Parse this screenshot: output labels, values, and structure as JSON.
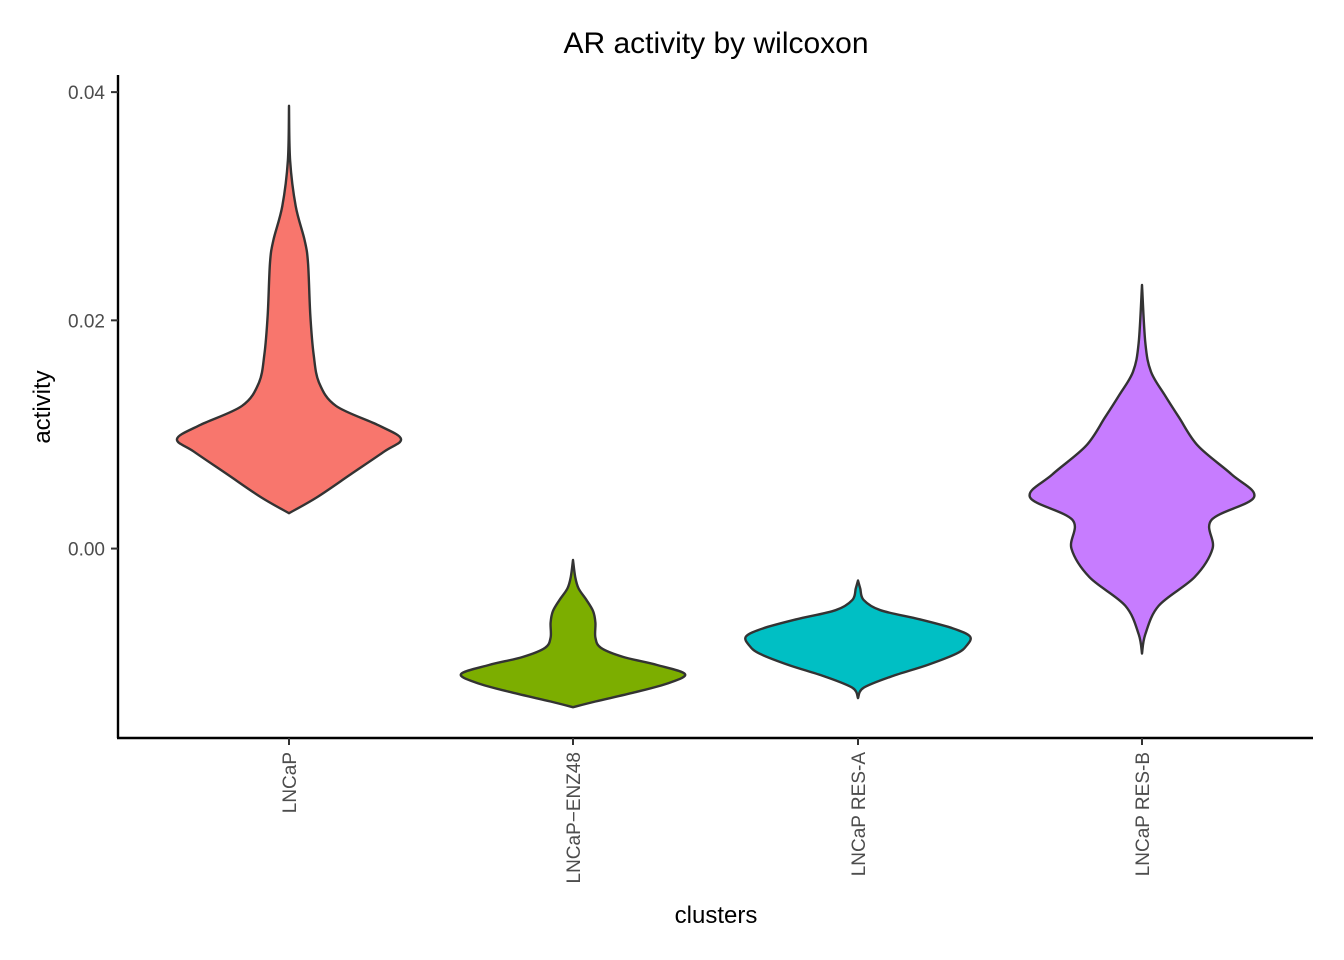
{
  "chart_data": {
    "type": "violin",
    "title": "AR activity by wilcoxon",
    "xlabel": "clusters",
    "ylabel": "activity",
    "ylim": [
      -0.0166,
      0.0415
    ],
    "yticks": [
      0.0,
      0.02,
      0.04
    ],
    "ytick_labels": [
      "0.00",
      "0.02",
      "0.04"
    ],
    "grid": false,
    "legend": "none",
    "categories": [
      "LNCaP",
      "LNCaP−ENZ48",
      "LNCaP RES-A",
      "LNCaP RES-B"
    ],
    "series": [
      {
        "category": "LNCaP",
        "color": "#F8766D",
        "min": 0.0031,
        "max": 0.0388,
        "density": [
          [
            0.0031,
            0.0
          ],
          [
            0.0045,
            0.25
          ],
          [
            0.0065,
            0.55
          ],
          [
            0.0085,
            0.85
          ],
          [
            0.0096,
            1.0
          ],
          [
            0.0108,
            0.8
          ],
          [
            0.0125,
            0.42
          ],
          [
            0.0145,
            0.27
          ],
          [
            0.017,
            0.22
          ],
          [
            0.0205,
            0.19
          ],
          [
            0.025,
            0.17
          ],
          [
            0.027,
            0.14
          ],
          [
            0.03,
            0.06
          ],
          [
            0.034,
            0.01
          ],
          [
            0.0388,
            0.0
          ]
        ]
      },
      {
        "category": "LNCaP−ENZ48",
        "color": "#7CAE00",
        "min": -0.0139,
        "max": -0.001,
        "density": [
          [
            -0.0139,
            0.0
          ],
          [
            -0.0134,
            0.2
          ],
          [
            -0.0126,
            0.55
          ],
          [
            -0.0118,
            0.85
          ],
          [
            -0.011,
            1.0
          ],
          [
            -0.0102,
            0.75
          ],
          [
            -0.0095,
            0.45
          ],
          [
            -0.0087,
            0.25
          ],
          [
            -0.0078,
            0.2
          ],
          [
            -0.0065,
            0.2
          ],
          [
            -0.0055,
            0.18
          ],
          [
            -0.0045,
            0.12
          ],
          [
            -0.0035,
            0.05
          ],
          [
            -0.0025,
            0.02
          ],
          [
            -0.001,
            0.0
          ]
        ]
      },
      {
        "category": "LNCaP RES-A",
        "color": "#00BFC4",
        "min": -0.0131,
        "max": -0.0028,
        "density": [
          [
            -0.0131,
            0.0
          ],
          [
            -0.0122,
            0.05
          ],
          [
            -0.0112,
            0.3
          ],
          [
            -0.0102,
            0.62
          ],
          [
            -0.0092,
            0.88
          ],
          [
            -0.0085,
            0.97
          ],
          [
            -0.0077,
            1.0
          ],
          [
            -0.007,
            0.85
          ],
          [
            -0.0062,
            0.55
          ],
          [
            -0.0054,
            0.2
          ],
          [
            -0.0045,
            0.05
          ],
          [
            -0.0035,
            0.02
          ],
          [
            -0.0028,
            0.0
          ]
        ]
      },
      {
        "category": "LNCaP RES-B",
        "color": "#C77CFF",
        "min": -0.0092,
        "max": 0.0231,
        "density": [
          [
            -0.0092,
            0.0
          ],
          [
            -0.0075,
            0.03
          ],
          [
            -0.005,
            0.15
          ],
          [
            -0.0025,
            0.47
          ],
          [
            0.0,
            0.63
          ],
          [
            0.0025,
            0.62
          ],
          [
            0.0045,
            1.0
          ],
          [
            0.0065,
            0.8
          ],
          [
            0.009,
            0.5
          ],
          [
            0.0115,
            0.33
          ],
          [
            0.0135,
            0.2
          ],
          [
            0.0155,
            0.08
          ],
          [
            0.018,
            0.03
          ],
          [
            0.0231,
            0.0
          ]
        ]
      }
    ]
  }
}
